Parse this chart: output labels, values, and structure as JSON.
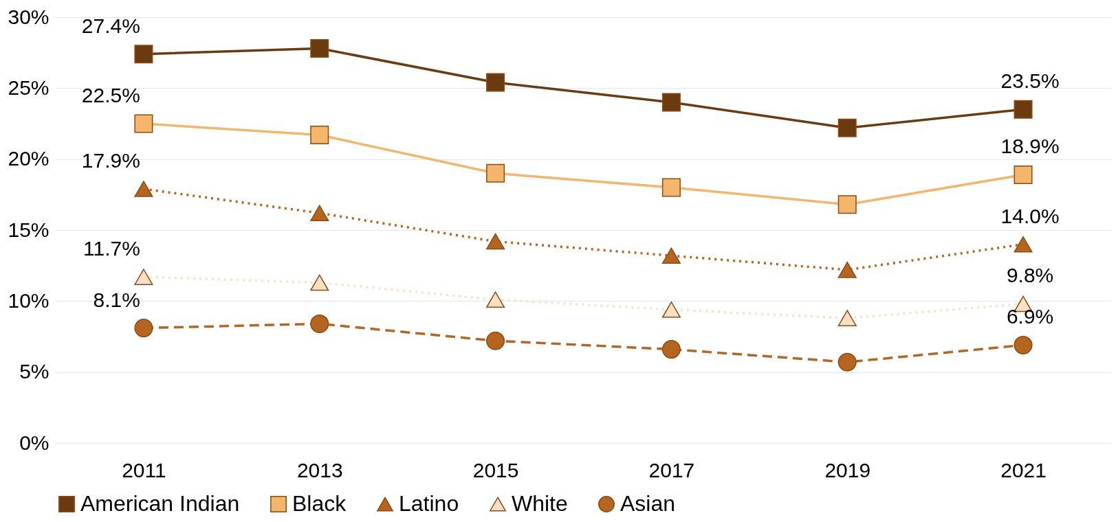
{
  "chart_data": {
    "type": "line",
    "categories": [
      "2011",
      "2013",
      "2015",
      "2017",
      "2019",
      "2021"
    ],
    "series": [
      {
        "name": "American Indian",
        "color": "#6b3a0f",
        "marker": "square",
        "line_style": "solid",
        "values": [
          27.4,
          27.8,
          25.4,
          24.0,
          22.2,
          23.5
        ],
        "value_labels": [
          "27.4%",
          null,
          null,
          null,
          null,
          "23.5%"
        ]
      },
      {
        "name": "Black",
        "color": "#f4b66a",
        "marker": "square",
        "line_style": "solid",
        "values": [
          22.5,
          21.7,
          19.0,
          18.0,
          16.8,
          18.9
        ],
        "value_labels": [
          "22.5%",
          null,
          null,
          null,
          null,
          "18.9%"
        ]
      },
      {
        "name": "Latino",
        "color": "#b5651d",
        "marker": "triangle",
        "line_style": "dotted",
        "values": [
          17.9,
          16.2,
          14.2,
          13.2,
          12.2,
          14.0
        ],
        "value_labels": [
          "17.9%",
          null,
          null,
          null,
          null,
          "14.0%"
        ]
      },
      {
        "name": "White",
        "color": "#fbe0c4",
        "marker": "triangle",
        "line_style": "dotted",
        "values": [
          11.7,
          11.3,
          10.1,
          9.4,
          8.8,
          9.8
        ],
        "value_labels": [
          "11.7%",
          null,
          null,
          null,
          null,
          "9.8%"
        ]
      },
      {
        "name": "Asian",
        "color": "#b5651d",
        "marker": "circle",
        "line_style": "dashed",
        "values": [
          8.1,
          8.4,
          7.2,
          6.6,
          5.7,
          6.9
        ],
        "value_labels": [
          "8.1%",
          null,
          null,
          null,
          null,
          "6.9%"
        ]
      }
    ],
    "ylim": [
      0,
      30
    ],
    "yticks": [
      {
        "value": 0,
        "label": "0%"
      },
      {
        "value": 5,
        "label": "5%"
      },
      {
        "value": 10,
        "label": "10%"
      },
      {
        "value": 15,
        "label": "15%"
      },
      {
        "value": 20,
        "label": "20%"
      },
      {
        "value": 25,
        "label": "25%"
      },
      {
        "value": 30,
        "label": "30%"
      }
    ],
    "grid": "y",
    "legend": "bottom"
  }
}
